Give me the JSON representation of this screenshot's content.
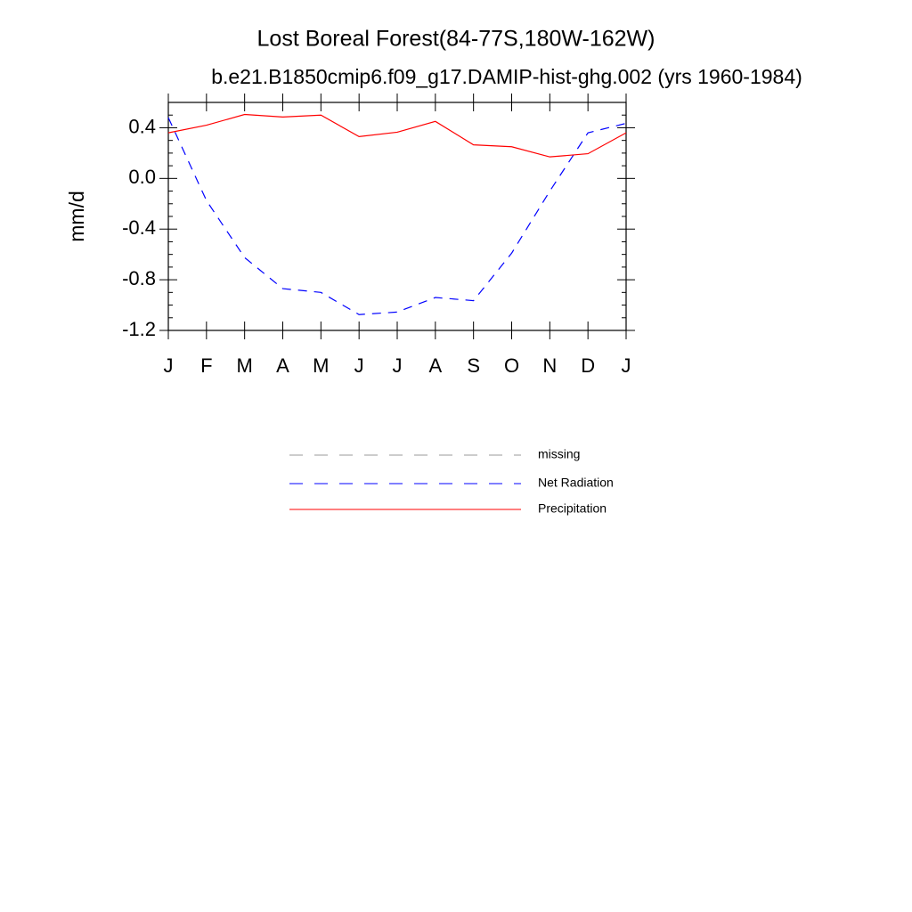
{
  "chart_data": {
    "type": "line",
    "title": "Lost Boreal Forest(84-77S,180W-162W)",
    "subtitle": "b.e21.B1850cmip6.f09_g17.DAMIP-hist-ghg.002 (yrs 1960-1984)",
    "y_label": "mm/d",
    "categories": [
      "J",
      "F",
      "M",
      "A",
      "M",
      "J",
      "J",
      "A",
      "S",
      "O",
      "N",
      "D",
      "J"
    ],
    "series": [
      {
        "name": "missing",
        "color": "#999999",
        "dash": "dashed",
        "values": [
          null,
          null,
          null,
          null,
          null,
          null,
          null,
          null,
          null,
          null,
          null,
          null,
          null
        ]
      },
      {
        "name": "Net Radiation",
        "color": "#0000ff",
        "dash": "dashed",
        "values": [
          0.48,
          -0.175,
          -0.625,
          -0.87,
          -0.9,
          -1.075,
          -1.055,
          -0.94,
          -0.965,
          -0.59,
          -0.1,
          0.36,
          0.435
        ]
      },
      {
        "name": "Precipitation",
        "color": "#ff0000",
        "dash": "solid",
        "values": [
          0.36,
          0.42,
          0.505,
          0.485,
          0.5,
          0.33,
          0.365,
          0.45,
          0.265,
          0.25,
          0.17,
          0.195,
          0.36
        ]
      }
    ],
    "ylim": [
      -1.2,
      0.6
    ],
    "yticks": [
      {
        "value": 0.4,
        "label": "0.4"
      },
      {
        "value": 0,
        "label": "0.0"
      },
      -0.4,
      -0.8,
      -1.2
    ],
    "yminorticks": [
      0.6,
      0.5,
      0.3,
      0.2,
      0.1,
      -0.1,
      -0.2,
      -0.3,
      -0.5,
      -0.6,
      -0.7,
      -0.9,
      -1.0,
      -1.1
    ],
    "legend_position": "bottom"
  }
}
